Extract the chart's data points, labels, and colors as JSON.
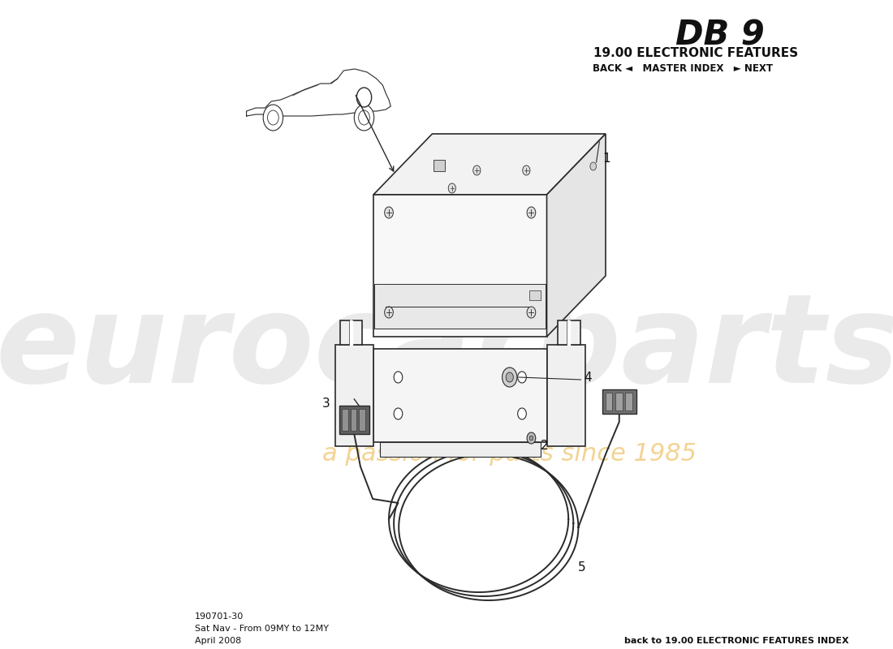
{
  "title_model": "DB 9",
  "title_section": "19.00 ELECTRONIC FEATURES",
  "nav_text": "BACK ◄   MASTER INDEX   ► NEXT",
  "bottom_left_line1": "190701-30",
  "bottom_left_line2": "Sat Nav - From 09MY to 12MY",
  "bottom_left_line3": "April 2008",
  "bottom_right": "back to 19.00 ELECTRONIC FEATURES INDEX",
  "bg_color": "#ffffff",
  "line_color": "#2a2a2a",
  "watermark_text_color": "#e2e2e2",
  "watermark_passion_color": "#f0c878",
  "label_color": "#111111",
  "figsize": [
    11.0,
    8.0
  ],
  "dpi": 100
}
